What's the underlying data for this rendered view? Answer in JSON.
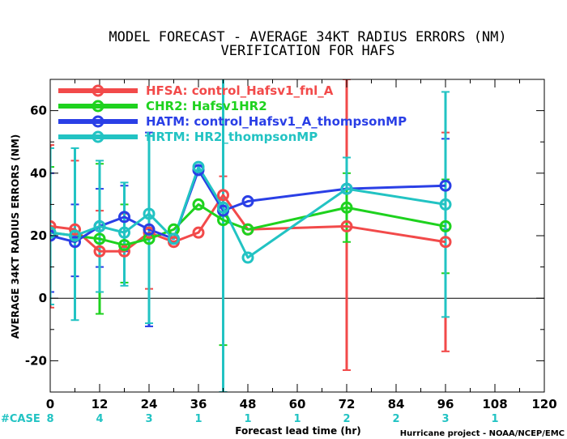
{
  "title_line1": "MODEL FORECAST - AVERAGE 34KT RADIUS ERRORS (NM)",
  "title_line2": "VERIFICATION FOR HAFS",
  "footer": "Hurricane project - NOAA/NCEP/EMC",
  "case_label": "#CASE",
  "case_counts": [
    {
      "x": 0,
      "n": "8"
    },
    {
      "x": 12,
      "n": "4"
    },
    {
      "x": 24,
      "n": "3"
    },
    {
      "x": 36,
      "n": "1"
    },
    {
      "x": 48,
      "n": "1"
    },
    {
      "x": 60,
      "n": "1"
    },
    {
      "x": 72,
      "n": "2"
    },
    {
      "x": 84,
      "n": "2"
    },
    {
      "x": 96,
      "n": "3"
    },
    {
      "x": 108,
      "n": "1"
    }
  ],
  "colors": {
    "HFSA": "#f24a4a",
    "CHR2": "#1ed21e",
    "HATM": "#2a3fe6",
    "HRTM": "#22c3c3",
    "case": "#22c3c3"
  },
  "chart_data": {
    "type": "line",
    "title": "MODEL FORECAST - AVERAGE 34KT RADIUS ERRORS (NM)",
    "subtitle": "VERIFICATION FOR HAFS",
    "xlabel": "Forecast lead time (hr)",
    "ylabel": "AVERAGE 34KT RADIUS ERRORS (NM)",
    "xlim": [
      0,
      120
    ],
    "ylim": [
      -30,
      70
    ],
    "xticks": [
      0,
      12,
      24,
      36,
      48,
      60,
      72,
      84,
      96,
      108,
      120
    ],
    "yticks": [
      -20,
      0,
      20,
      40,
      60
    ],
    "grid": false,
    "zero_line": true,
    "legend": "top-left",
    "series": [
      {
        "name": "HFSA: control_Hafsv1_fnl_A",
        "color": "#f24a4a",
        "x": [
          0,
          6,
          12,
          18,
          24,
          30,
          36,
          42,
          48,
          72,
          96
        ],
        "y": [
          23,
          22,
          15,
          15,
          21,
          18,
          21,
          33,
          22,
          23,
          18
        ],
        "err": [
          [
            -3,
            49
          ],
          [
            null,
            44
          ],
          [
            null,
            28
          ],
          [
            null,
            27
          ],
          [
            3,
            null
          ],
          [
            null,
            null
          ],
          [
            null,
            null
          ],
          [
            null,
            39
          ],
          [
            null,
            null
          ],
          [
            -23,
            70
          ],
          [
            -17,
            53
          ]
        ]
      },
      {
        "name": "CHR2: Hafsv1HR2",
        "color": "#1ed21e",
        "x": [
          0,
          6,
          12,
          18,
          24,
          30,
          36,
          42,
          48,
          72,
          96
        ],
        "y": [
          21,
          20,
          19,
          17,
          19,
          22,
          30,
          25,
          22,
          29,
          23
        ],
        "err": [
          [
            null,
            42
          ],
          [
            null,
            null
          ],
          [
            -5,
            43
          ],
          [
            5,
            30
          ],
          [
            null,
            null
          ],
          [
            null,
            null
          ],
          [
            null,
            null
          ],
          [
            -15,
            null
          ],
          [
            null,
            null
          ],
          [
            18,
            40
          ],
          [
            8,
            38
          ]
        ]
      },
      {
        "name": "HATM: control_Hafsv1_A_thompsonMP",
        "color": "#2a3fe6",
        "x": [
          0,
          6,
          12,
          18,
          24,
          30,
          36,
          42,
          48,
          72,
          96
        ],
        "y": [
          20,
          18,
          23,
          26,
          22,
          19,
          41,
          28,
          31,
          35,
          36
        ],
        "err": [
          [
            2,
            40
          ],
          [
            7,
            30
          ],
          [
            10,
            35
          ],
          [
            15,
            36
          ],
          [
            -9,
            53
          ],
          [
            null,
            null
          ],
          [
            null,
            null
          ],
          [
            null,
            null
          ],
          [
            null,
            null
          ],
          [
            null,
            null
          ],
          [
            22,
            51
          ]
        ]
      },
      {
        "name": "HRTM: HR2_thompsonMP",
        "color": "#22c3c3",
        "x": [
          0,
          6,
          12,
          18,
          24,
          30,
          36,
          42,
          48,
          72,
          96
        ],
        "y": [
          21,
          20,
          23,
          21,
          27,
          19,
          42,
          29,
          13,
          35,
          30
        ],
        "err": [
          [
            -2,
            48
          ],
          [
            -7,
            48
          ],
          [
            2,
            44
          ],
          [
            4,
            37
          ],
          [
            -8,
            52
          ],
          [
            null,
            null
          ],
          [
            null,
            null
          ],
          [
            -30,
            94
          ],
          [
            null,
            null
          ],
          [
            null,
            45
          ],
          [
            -6,
            66
          ]
        ]
      }
    ]
  }
}
